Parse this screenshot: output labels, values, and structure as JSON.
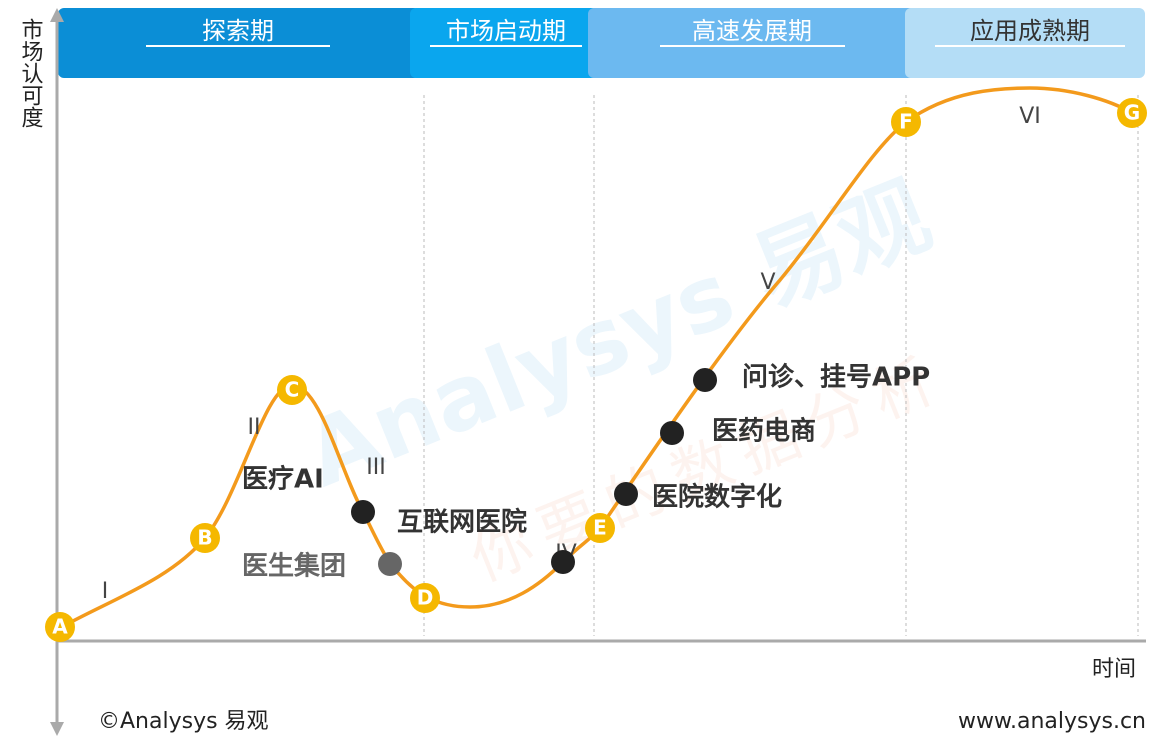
{
  "phases": [
    "探索期",
    "市场启动期",
    "高速发展期",
    "应用成熟期"
  ],
  "y_axis_label": "市场认可度",
  "x_axis_label": "时间",
  "stages": [
    "I",
    "II",
    "III",
    "IV",
    "V",
    "VI"
  ],
  "points": [
    "A",
    "B",
    "C",
    "D",
    "E",
    "F",
    "G"
  ],
  "products": [
    "医疗AI",
    "医生集团",
    "互联网医院",
    "医院数字化",
    "医药电商",
    "问诊、挂号APP"
  ],
  "watermark": {
    "brand": "Analysys 易观",
    "slogan": "你要的数据分析"
  },
  "footer": {
    "copyright": "©Analysys 易观",
    "website": "www.analysys.cn"
  }
}
